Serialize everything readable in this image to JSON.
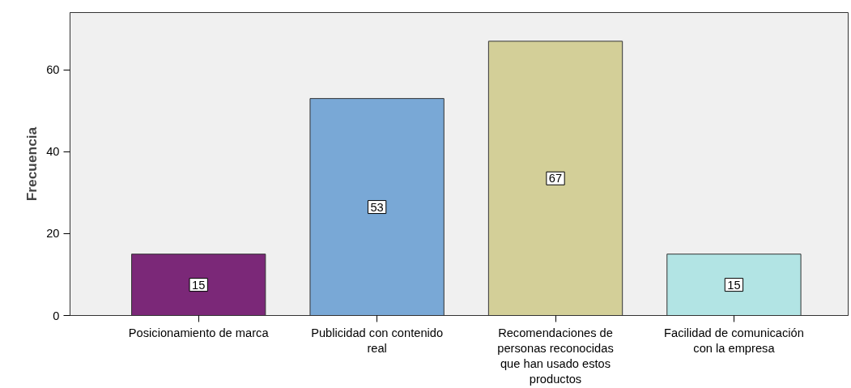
{
  "chart_data": {
    "type": "bar",
    "ylabel": "Frecuencia",
    "categories": [
      "Posicionamiento de marca",
      "Publicidad con contenido\nreal",
      "Recomendaciones de\npersonas reconocidas\nque han usado estos\nproductos",
      "Facilidad de comunicación\ncon la empresa"
    ],
    "values": [
      15,
      53,
      67,
      15
    ],
    "colors": [
      "#7b2878",
      "#79a8d6",
      "#d3cf98",
      "#b2e4e4"
    ],
    "ylim": [
      0,
      74
    ],
    "yticks": [
      0,
      20,
      40,
      60
    ],
    "grid": false,
    "data_labels": true
  }
}
